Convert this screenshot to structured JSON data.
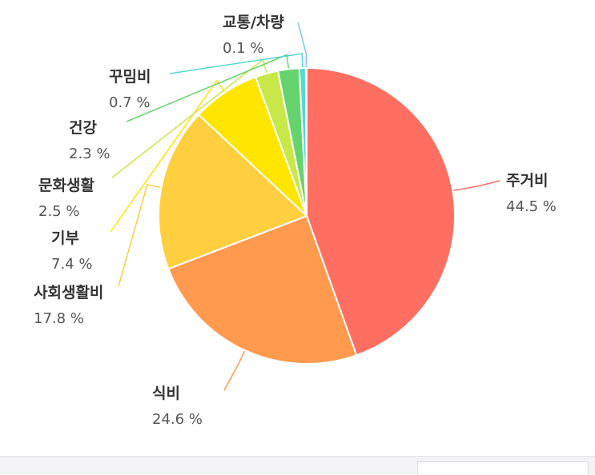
{
  "chart_data": {
    "type": "pie",
    "categories": [
      "주거비",
      "식비",
      "사회생활비",
      "기부",
      "문화생활",
      "건강",
      "꾸밈비",
      "교통/차량"
    ],
    "values": [
      44.5,
      24.6,
      17.8,
      7.4,
      2.5,
      2.3,
      0.7,
      0.1
    ],
    "value_labels": [
      "44.5 %",
      "24.6 %",
      "17.8 %",
      "7.4 %",
      "2.5 %",
      "2.3 %",
      "0.7 %",
      "0.1 %"
    ],
    "colors": [
      "#ff6f61",
      "#ff9a4f",
      "#ffcf40",
      "#ffe600",
      "#c8e84a",
      "#66d46e",
      "#56d9cf",
      "#78c8f0"
    ],
    "start_angle_deg": 0,
    "direction": "clockwise",
    "legend": "none",
    "labels": "outside-with-leader-lines"
  }
}
